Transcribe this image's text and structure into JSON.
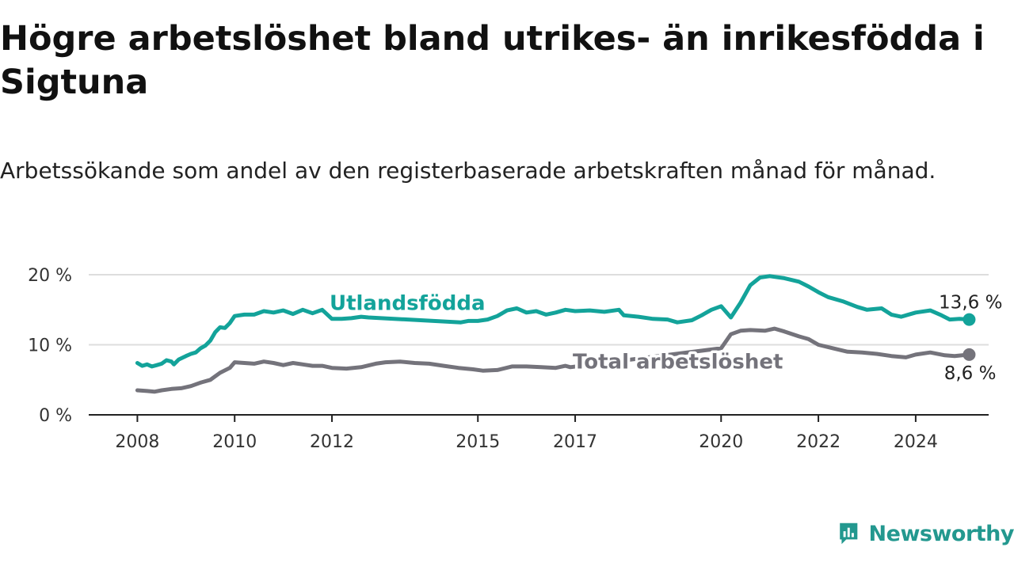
{
  "header": {
    "title": "Högre arbetslöshet bland utrikes- än inrikesfödda i Sigtuna",
    "subtitle": "Arbetssökande som andel av den registerbaserade arbetskraften månad för månad."
  },
  "brand": {
    "name": "Newsworthy"
  },
  "colors": {
    "foreign": "#13a39a",
    "total": "#74737b",
    "grid": "#dddddd",
    "axis": "#222222",
    "brand": "#23988f"
  },
  "chart_data": {
    "type": "line",
    "title": "Högre arbetslöshet bland utrikes- än inrikesfödda i Sigtuna",
    "subtitle": "Arbetssökande som andel av den registerbaserade arbetskraften månad för månad.",
    "xlabel": "",
    "ylabel": "",
    "x_range": [
      2007.0,
      2025.5
    ],
    "ylim": [
      0,
      20
    ],
    "y_ticks": [
      {
        "value": 0,
        "label": "0 %"
      },
      {
        "value": 10,
        "label": "10 %"
      },
      {
        "value": 20,
        "label": "20 %"
      }
    ],
    "x_ticks": [
      {
        "value": 2008.0,
        "label": "2008"
      },
      {
        "value": 2010.0,
        "label": "2010"
      },
      {
        "value": 2012.0,
        "label": "2012"
      },
      {
        "value": 2015.0,
        "label": "2015"
      },
      {
        "value": 2017.0,
        "label": "2017"
      },
      {
        "value": 2020.0,
        "label": "2020"
      },
      {
        "value": 2022.0,
        "label": "2022"
      },
      {
        "value": 2024.0,
        "label": "2024"
      }
    ],
    "grid": true,
    "series": [
      {
        "name": "Utlandsfödda",
        "color": "#13a39a",
        "end_label": "13,6 %",
        "points": [
          [
            2008.0,
            7.4
          ],
          [
            2008.1,
            7.0
          ],
          [
            2008.2,
            7.2
          ],
          [
            2008.3,
            6.9
          ],
          [
            2008.4,
            7.1
          ],
          [
            2008.5,
            7.3
          ],
          [
            2008.6,
            7.8
          ],
          [
            2008.7,
            7.6
          ],
          [
            2008.75,
            7.2
          ],
          [
            2008.85,
            7.9
          ],
          [
            2009.0,
            8.4
          ],
          [
            2009.1,
            8.7
          ],
          [
            2009.2,
            8.9
          ],
          [
            2009.3,
            9.5
          ],
          [
            2009.4,
            9.9
          ],
          [
            2009.5,
            10.6
          ],
          [
            2009.6,
            11.8
          ],
          [
            2009.7,
            12.5
          ],
          [
            2009.8,
            12.4
          ],
          [
            2009.9,
            13.1
          ],
          [
            2010.0,
            14.1
          ],
          [
            2010.2,
            14.3
          ],
          [
            2010.4,
            14.3
          ],
          [
            2010.6,
            14.8
          ],
          [
            2010.8,
            14.6
          ],
          [
            2011.0,
            14.9
          ],
          [
            2011.2,
            14.4
          ],
          [
            2011.4,
            15.0
          ],
          [
            2011.6,
            14.5
          ],
          [
            2011.8,
            15.0
          ],
          [
            2012.0,
            13.7
          ],
          [
            2012.2,
            13.7
          ],
          [
            2012.4,
            13.8
          ],
          [
            2012.6,
            14.0
          ],
          [
            2012.75,
            13.9
          ],
          [
            2014.65,
            13.2
          ],
          [
            2014.8,
            13.4
          ],
          [
            2015.0,
            13.4
          ],
          [
            2015.2,
            13.6
          ],
          [
            2015.4,
            14.1
          ],
          [
            2015.6,
            14.9
          ],
          [
            2015.8,
            15.2
          ],
          [
            2016.0,
            14.6
          ],
          [
            2016.2,
            14.8
          ],
          [
            2016.4,
            14.3
          ],
          [
            2016.6,
            14.6
          ],
          [
            2016.8,
            15.0
          ],
          [
            2017.0,
            14.8
          ],
          [
            2017.3,
            14.9
          ],
          [
            2017.6,
            14.7
          ],
          [
            2017.9,
            15.0
          ],
          [
            2018.0,
            14.2
          ],
          [
            2018.3,
            14.0
          ],
          [
            2018.6,
            13.7
          ],
          [
            2018.9,
            13.6
          ],
          [
            2019.1,
            13.2
          ],
          [
            2019.4,
            13.5
          ],
          [
            2019.6,
            14.2
          ],
          [
            2019.8,
            15.0
          ],
          [
            2020.0,
            15.5
          ],
          [
            2020.2,
            13.9
          ],
          [
            2020.4,
            16.0
          ],
          [
            2020.6,
            18.5
          ],
          [
            2020.8,
            19.6
          ],
          [
            2021.0,
            19.8
          ],
          [
            2021.3,
            19.5
          ],
          [
            2021.6,
            19.0
          ],
          [
            2021.8,
            18.3
          ],
          [
            2022.0,
            17.5
          ],
          [
            2022.2,
            16.8
          ],
          [
            2022.5,
            16.2
          ],
          [
            2022.8,
            15.4
          ],
          [
            2023.0,
            15.0
          ],
          [
            2023.3,
            15.2
          ],
          [
            2023.5,
            14.3
          ],
          [
            2023.7,
            14.0
          ],
          [
            2024.0,
            14.6
          ],
          [
            2024.3,
            14.9
          ],
          [
            2024.5,
            14.3
          ],
          [
            2024.7,
            13.6
          ],
          [
            2024.9,
            13.7
          ],
          [
            2025.1,
            13.6
          ]
        ]
      },
      {
        "name": "Total arbetslöshet",
        "color": "#74737b",
        "end_label": "8,6 %",
        "points": [
          [
            2008.0,
            3.5
          ],
          [
            2008.2,
            3.4
          ],
          [
            2008.35,
            3.3
          ],
          [
            2008.5,
            3.5
          ],
          [
            2008.7,
            3.7
          ],
          [
            2008.9,
            3.8
          ],
          [
            2009.1,
            4.1
          ],
          [
            2009.3,
            4.6
          ],
          [
            2009.5,
            5.0
          ],
          [
            2009.7,
            6.0
          ],
          [
            2009.9,
            6.7
          ],
          [
            2010.0,
            7.5
          ],
          [
            2010.2,
            7.4
          ],
          [
            2010.4,
            7.3
          ],
          [
            2010.6,
            7.6
          ],
          [
            2010.8,
            7.4
          ],
          [
            2011.0,
            7.1
          ],
          [
            2011.2,
            7.4
          ],
          [
            2011.4,
            7.2
          ],
          [
            2011.6,
            7.0
          ],
          [
            2011.8,
            7.0
          ],
          [
            2012.0,
            6.7
          ],
          [
            2012.3,
            6.6
          ],
          [
            2012.6,
            6.8
          ],
          [
            2012.9,
            7.3
          ],
          [
            2013.1,
            7.5
          ],
          [
            2013.4,
            7.6
          ],
          [
            2013.7,
            7.4
          ],
          [
            2014.0,
            7.3
          ],
          [
            2014.3,
            7.0
          ],
          [
            2014.6,
            6.7
          ],
          [
            2014.9,
            6.5
          ],
          [
            2015.1,
            6.3
          ],
          [
            2015.4,
            6.4
          ],
          [
            2015.7,
            6.9
          ],
          [
            2016.0,
            6.9
          ],
          [
            2016.3,
            6.8
          ],
          [
            2016.6,
            6.7
          ],
          [
            2016.8,
            7.0
          ],
          [
            2016.9,
            6.8
          ],
          [
            2020.0,
            9.5
          ],
          [
            2020.2,
            11.5
          ],
          [
            2020.4,
            12.0
          ],
          [
            2020.6,
            12.1
          ],
          [
            2020.9,
            12.0
          ],
          [
            2021.1,
            12.3
          ],
          [
            2021.3,
            11.9
          ],
          [
            2021.6,
            11.2
          ],
          [
            2021.8,
            10.8
          ],
          [
            2022.0,
            10.0
          ],
          [
            2022.3,
            9.5
          ],
          [
            2022.6,
            9.0
          ],
          [
            2022.9,
            8.9
          ],
          [
            2023.2,
            8.7
          ],
          [
            2023.5,
            8.4
          ],
          [
            2023.8,
            8.2
          ],
          [
            2024.0,
            8.6
          ],
          [
            2024.3,
            8.9
          ],
          [
            2024.6,
            8.5
          ],
          [
            2024.8,
            8.4
          ],
          [
            2025.1,
            8.6
          ]
        ]
      }
    ],
    "annotations": [
      {
        "text": "Utlandsfödda",
        "series": "Utlandsfödda"
      },
      {
        "text": "Total arbetslöshet",
        "series": "Total arbetslöshet"
      }
    ]
  }
}
